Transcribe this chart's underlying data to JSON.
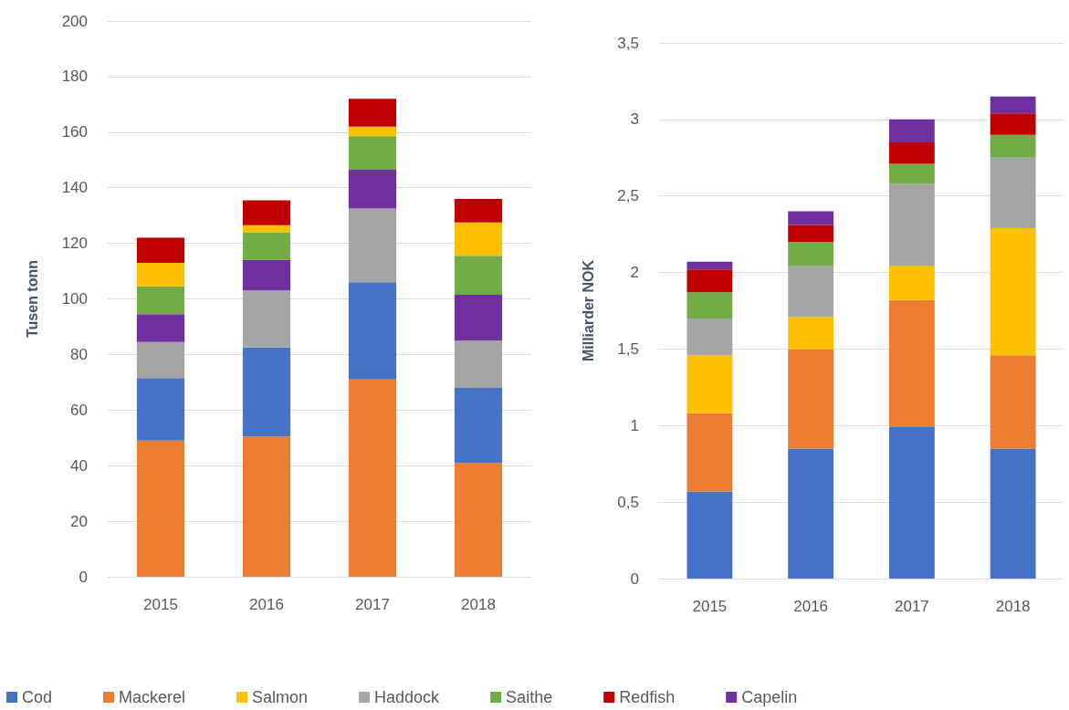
{
  "chart_data": [
    {
      "type": "bar",
      "ylabel": "Tusen tonn",
      "categories": [
        "2015",
        "2016",
        "2017",
        "2018"
      ],
      "stacked": true,
      "grid": "y",
      "legend": false,
      "ylim": [
        0,
        200
      ],
      "yticks": [
        0,
        20,
        40,
        60,
        80,
        100,
        120,
        140,
        160,
        180,
        200
      ],
      "series": [
        {
          "color": "#ed7d31",
          "values": [
            49,
            50.5,
            71,
            41
          ]
        },
        {
          "color": "#4472c4",
          "values": [
            22.5,
            32,
            35,
            27
          ]
        },
        {
          "color": "#a5a5a5",
          "values": [
            13,
            20.5,
            26.5,
            17
          ]
        },
        {
          "color": "#7030a0",
          "values": [
            10,
            11,
            14,
            16.5
          ]
        },
        {
          "color": "#70ad47",
          "values": [
            10,
            10,
            12,
            14
          ]
        },
        {
          "color": "#ffc000",
          "values": [
            8.5,
            2.5,
            3.5,
            12
          ]
        },
        {
          "color": "#c00000",
          "values": [
            9,
            9,
            10,
            8.5
          ]
        }
      ]
    },
    {
      "type": "bar",
      "ylabel": "Milliarder NOK",
      "categories": [
        "2015",
        "2016",
        "2017",
        "2018"
      ],
      "stacked": true,
      "grid": "y",
      "legend": "bottom",
      "ylim": [
        0,
        3.5
      ],
      "yticks": [
        0,
        {
          "value": 0.5,
          "label": "0,5"
        },
        1,
        {
          "value": 1.5,
          "label": "1,5"
        },
        2,
        {
          "value": 2.5,
          "label": "2,5"
        },
        3,
        {
          "value": 3.5,
          "label": "3,5"
        }
      ],
      "series": [
        {
          "name": "Cod",
          "color": "#4472c4",
          "values": [
            0.57,
            0.85,
            0.99,
            0.85
          ]
        },
        {
          "name": "Mackerel",
          "color": "#ed7d31",
          "values": [
            0.51,
            0.65,
            0.83,
            0.61
          ]
        },
        {
          "name": "Salmon",
          "color": "#ffc000",
          "values": [
            0.38,
            0.21,
            0.22,
            0.83
          ]
        },
        {
          "name": "Haddock",
          "color": "#a5a5a5",
          "values": [
            0.24,
            0.33,
            0.54,
            0.46
          ]
        },
        {
          "name": "Saithe",
          "color": "#70ad47",
          "values": [
            0.17,
            0.16,
            0.13,
            0.15
          ]
        },
        {
          "name": "Redfish",
          "color": "#c00000",
          "values": [
            0.15,
            0.11,
            0.14,
            0.14
          ]
        },
        {
          "name": "Capelin",
          "color": "#7030a0",
          "values": [
            0.05,
            0.09,
            0.15,
            0.11
          ]
        }
      ]
    }
  ]
}
